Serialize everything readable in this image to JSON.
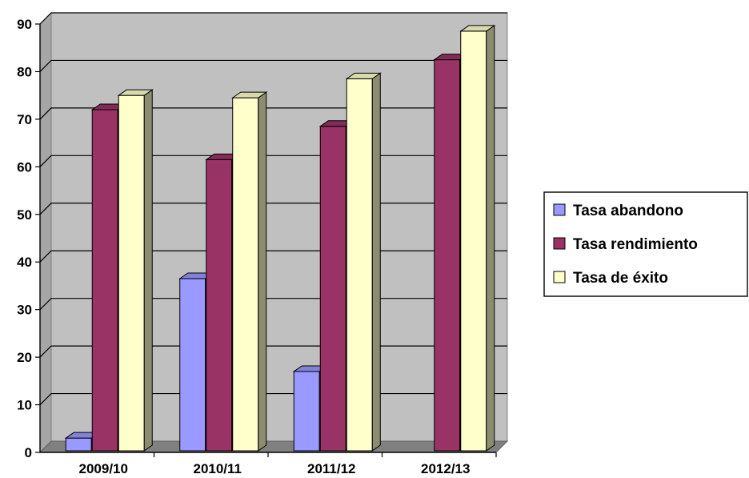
{
  "chart_data": {
    "type": "bar",
    "title": "",
    "xlabel": "",
    "ylabel": "",
    "categories": [
      "2009/10",
      "2010/11",
      "2011/12",
      "2012/13"
    ],
    "series": [
      {
        "name": "Tasa abandono",
        "values": [
          3,
          36.5,
          17,
          0
        ],
        "color": "#9999ff"
      },
      {
        "name": "Tasa rendimiento",
        "values": [
          72,
          61.5,
          68.5,
          82.5
        ],
        "color": "#993366"
      },
      {
        "name": "Tasa de éxito",
        "values": [
          75,
          74.5,
          78.5,
          88.5
        ],
        "color": "#ffffcc"
      }
    ],
    "ylim": [
      0,
      90
    ],
    "yticks": [
      0,
      10,
      20,
      30,
      40,
      50,
      60,
      70,
      80,
      90
    ],
    "grid": true,
    "legend_position": "right",
    "plot_background": "#c0c0c0",
    "style": "3d-clustered-column"
  }
}
